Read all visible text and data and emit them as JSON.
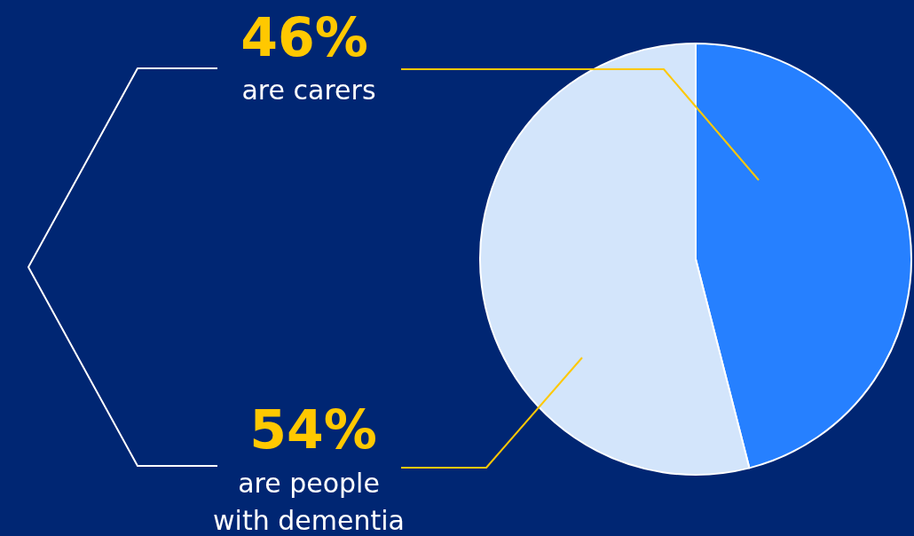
{
  "chart_data": {
    "type": "pie",
    "categories": [
      "are carers",
      "are people with dementia"
    ],
    "values": [
      46,
      54
    ],
    "colors": [
      "#2680ff",
      "#d3e5fb"
    ],
    "value_labels": [
      "46%",
      "54%"
    ]
  }
}
